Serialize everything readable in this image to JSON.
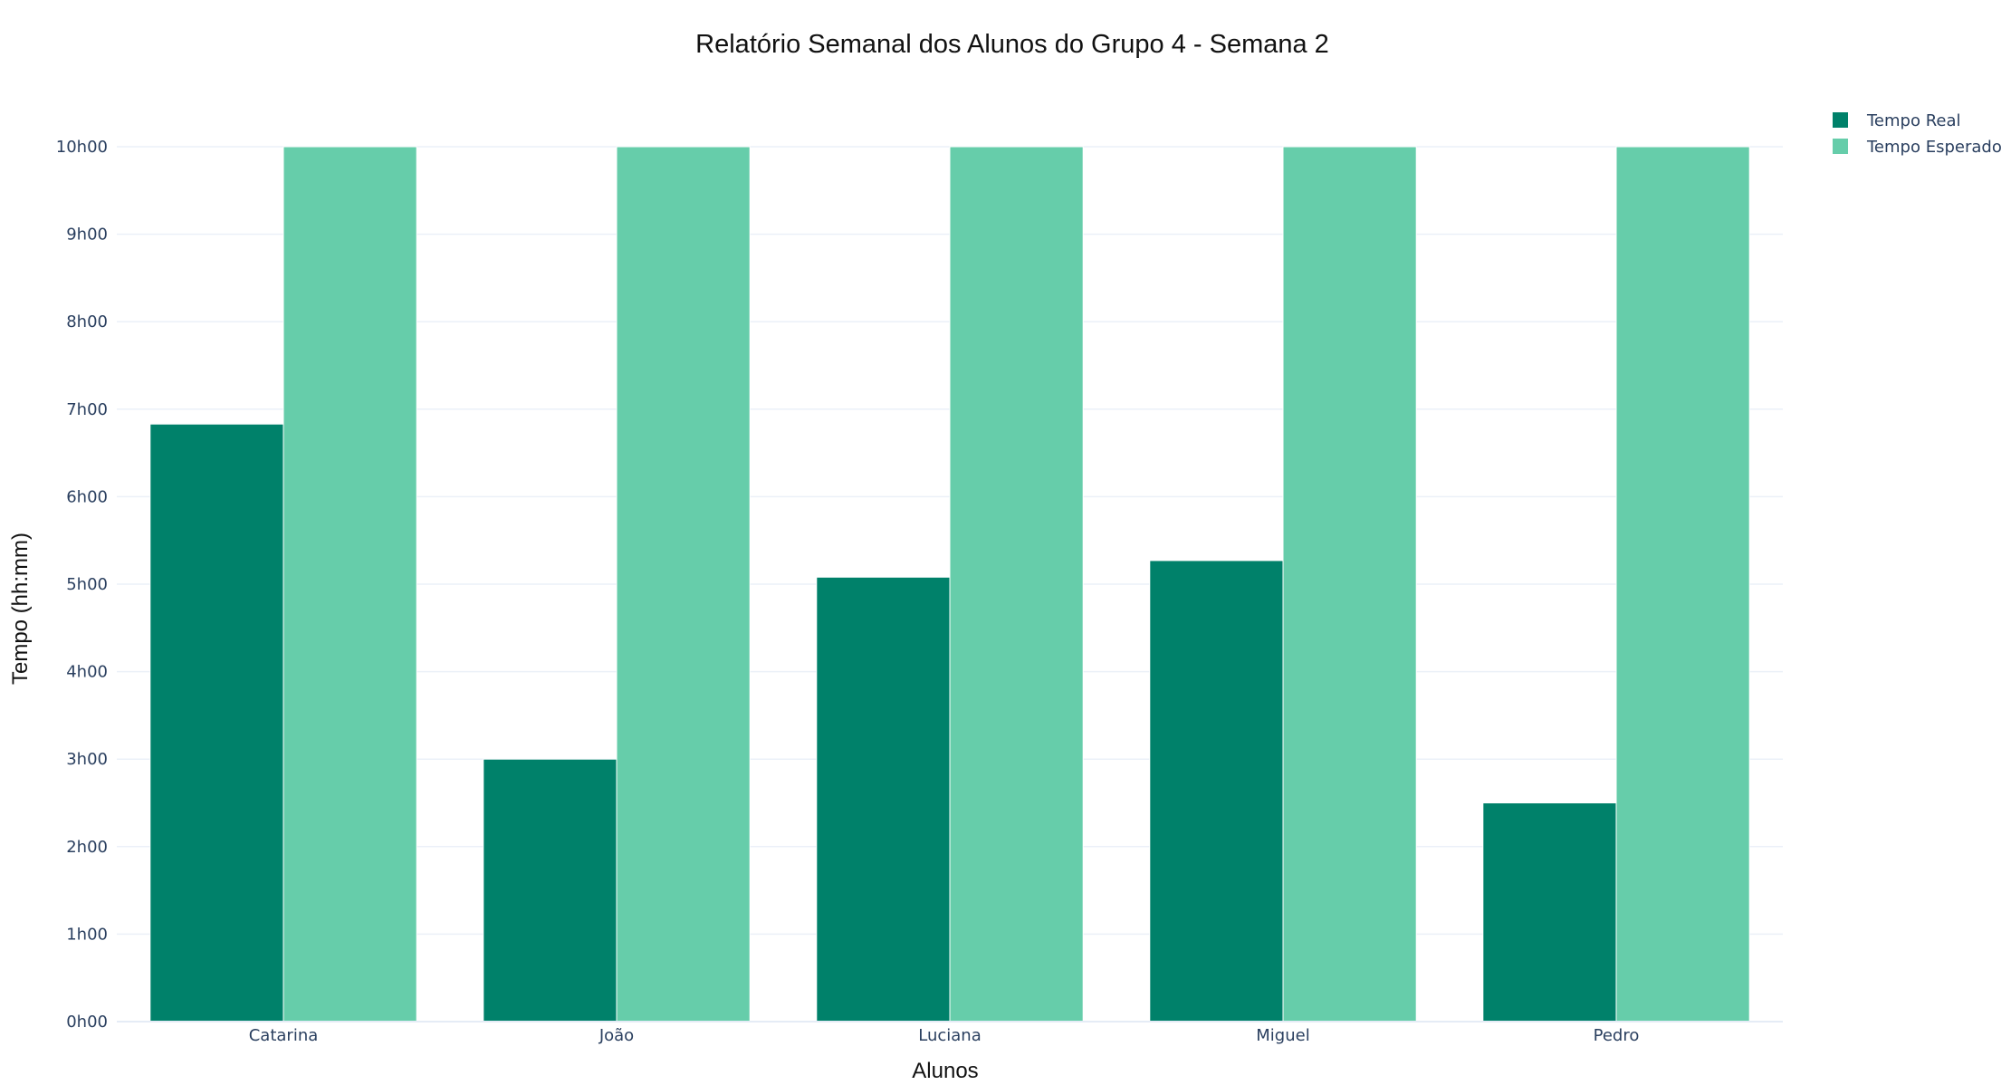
{
  "chart_data": {
    "type": "bar",
    "title": "Relatório Semanal dos Alunos do Grupo 4 - Semana 2",
    "xlabel": "Alunos",
    "ylabel": "Tempo (hh:mm)",
    "categories": [
      "Catarina",
      "João",
      "Luciana",
      "Miguel",
      "Pedro"
    ],
    "series": [
      {
        "name": "Tempo Real",
        "color": "#00816a",
        "values": [
          6.83,
          3.0,
          5.08,
          5.27,
          2.5
        ]
      },
      {
        "name": "Tempo Esperado",
        "color": "#66cdaa",
        "values": [
          10,
          10,
          10,
          10,
          10
        ]
      }
    ],
    "ylim": [
      0,
      10
    ],
    "yticks": [
      {
        "value": 0,
        "label": "0h00"
      },
      {
        "value": 1,
        "label": "1h00"
      },
      {
        "value": 2,
        "label": "2h00"
      },
      {
        "value": 3,
        "label": "3h00"
      },
      {
        "value": 4,
        "label": "4h00"
      },
      {
        "value": 5,
        "label": "5h00"
      },
      {
        "value": 6,
        "label": "6h00"
      },
      {
        "value": 7,
        "label": "7h00"
      },
      {
        "value": 8,
        "label": "8h00"
      },
      {
        "value": 9,
        "label": "9h00"
      },
      {
        "value": 10,
        "label": "10h00"
      }
    ],
    "grid": true,
    "legend_position": "top-right"
  }
}
